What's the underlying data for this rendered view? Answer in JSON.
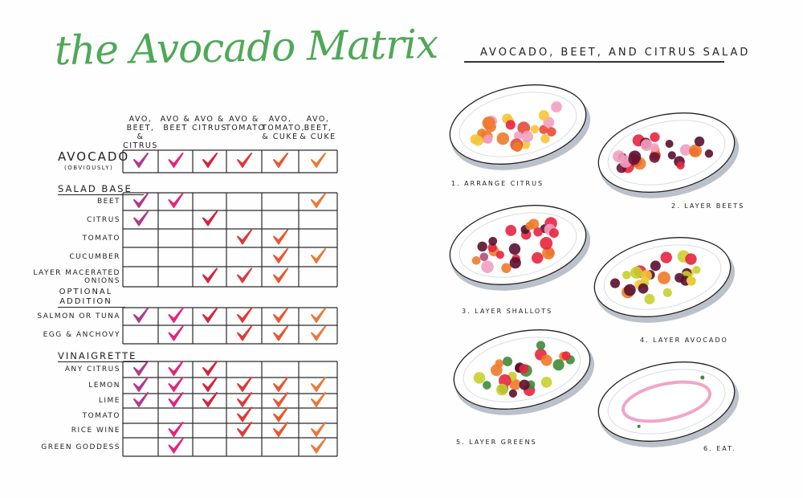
{
  "left_page": {
    "title": "the Avocado Matrix",
    "title_color": "#4fa857",
    "columns": [
      {
        "label": "AVO, BEET, & CITRUS",
        "color": "#b0388f"
      },
      {
        "label": "AVO & BEET",
        "color": "#e1267b"
      },
      {
        "label": "AVO & CITRUS",
        "color": "#d2243f"
      },
      {
        "label": "AVO & TOMATO",
        "color": "#df3a38"
      },
      {
        "label": "AVO, TOMATO, & CUKE",
        "color": "#ec5430"
      },
      {
        "label": "AVO, BEET, & CUKE",
        "color": "#e8793a"
      }
    ],
    "avocado_row": {
      "label": "AVOCADO",
      "sublabel": "(OBVIOUSLY)",
      "checks": [
        1,
        1,
        1,
        1,
        1,
        1
      ]
    },
    "sections": [
      {
        "title": "SALAD BASE",
        "rows": [
          {
            "label": "BEET",
            "checks": [
              1,
              1,
              0,
              0,
              0,
              1
            ]
          },
          {
            "label": "CITRUS",
            "checks": [
              1,
              0,
              1,
              0,
              0,
              0
            ]
          },
          {
            "label": "TOMATO",
            "checks": [
              0,
              0,
              0,
              1,
              1,
              0
            ]
          },
          {
            "label": "CUCUMBER",
            "checks": [
              0,
              0,
              0,
              0,
              1,
              1
            ]
          },
          {
            "label": "LAYER MACERATED ONIONS",
            "checks": [
              0,
              0,
              1,
              1,
              1,
              0
            ]
          }
        ]
      },
      {
        "title": "OPTIONAL ADDITION",
        "rows": [
          {
            "label": "SALMON or TUNA",
            "checks": [
              1,
              1,
              1,
              1,
              1,
              1
            ]
          },
          {
            "label": "EGG & ANCHOVY",
            "checks": [
              0,
              1,
              0,
              1,
              1,
              1
            ]
          }
        ]
      },
      {
        "title": "VINAIGRETTE",
        "rows": [
          {
            "label": "ANY CITRUS",
            "checks": [
              1,
              1,
              1,
              0,
              0,
              0
            ]
          },
          {
            "label": "LEMON",
            "checks": [
              1,
              1,
              1,
              1,
              1,
              1
            ]
          },
          {
            "label": "LIME",
            "checks": [
              1,
              1,
              1,
              1,
              1,
              1
            ]
          },
          {
            "label": "TOMATO",
            "checks": [
              0,
              0,
              0,
              1,
              1,
              0
            ]
          },
          {
            "label": "RICE WINE",
            "checks": [
              0,
              1,
              0,
              1,
              1,
              1
            ]
          },
          {
            "label": "GREEN GODDESS",
            "checks": [
              0,
              1,
              0,
              0,
              0,
              1
            ]
          }
        ]
      }
    ]
  },
  "right_page": {
    "title": "AVOCADO, BEET, and CITRUS SALAD",
    "steps": [
      {
        "label": "1. ARRANGE CITRUS",
        "contents": "citrus"
      },
      {
        "label": "2. LAYER BEETS",
        "contents": "beets"
      },
      {
        "label": "3. LAYER SHALLOTS",
        "contents": "shallots"
      },
      {
        "label": "4. LAYER AVOCADO",
        "contents": "avocado"
      },
      {
        "label": "5. LAYER GREENS",
        "contents": "greens"
      },
      {
        "label": "6. EAT.",
        "contents": "empty"
      }
    ]
  }
}
